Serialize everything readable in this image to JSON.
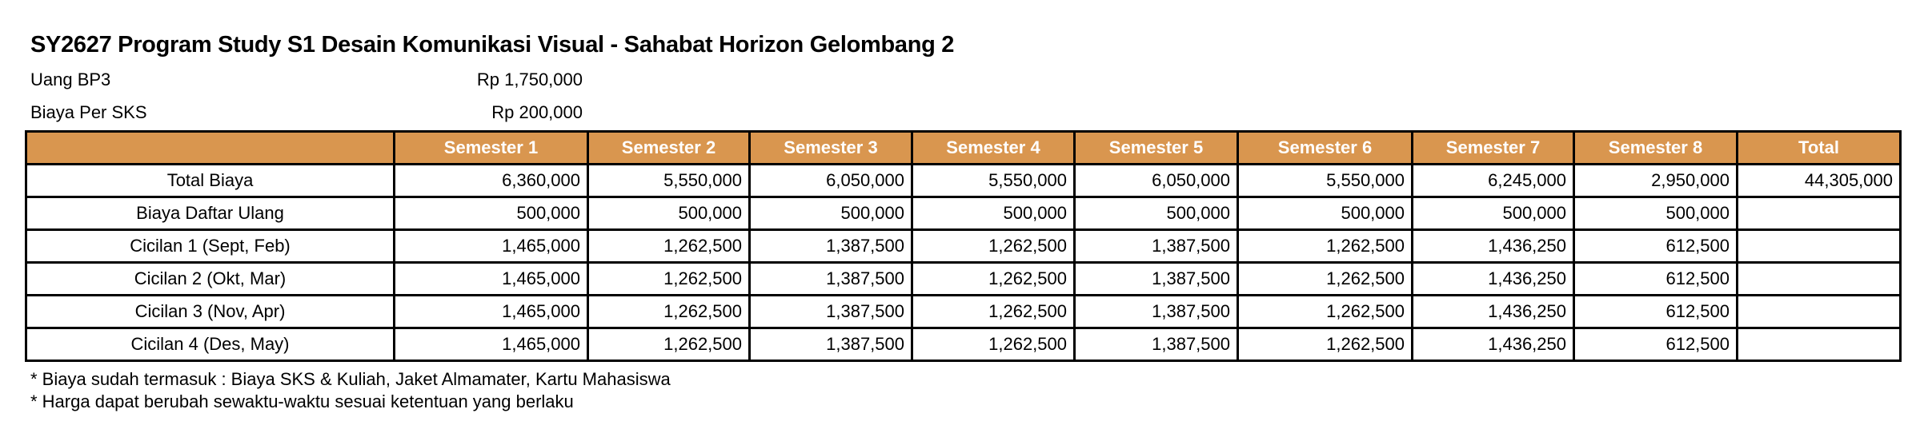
{
  "title": "SY2627 Program Study S1 Desain Komunikasi Visual - Sahabat Horizon Gelombang 2",
  "info": [
    {
      "label": "Uang BP3",
      "value": "Rp 1,750,000"
    },
    {
      "label": "Biaya Per SKS",
      "value": "Rp 200,000"
    }
  ],
  "header_color": "#D9964F",
  "table": {
    "columns": [
      "",
      "Semester 1",
      "Semester 2",
      "Semester 3",
      "Semester 4",
      "Semester 5",
      "Semester 6",
      "Semester 7",
      "Semester 8",
      "Total"
    ],
    "rows": [
      [
        "Total Biaya",
        "6,360,000",
        "5,550,000",
        "6,050,000",
        "5,550,000",
        "6,050,000",
        "5,550,000",
        "6,245,000",
        "2,950,000",
        "44,305,000"
      ],
      [
        "Biaya Daftar Ulang",
        "500,000",
        "500,000",
        "500,000",
        "500,000",
        "500,000",
        "500,000",
        "500,000",
        "500,000",
        ""
      ],
      [
        "Cicilan 1 (Sept, Feb)",
        "1,465,000",
        "1,262,500",
        "1,387,500",
        "1,262,500",
        "1,387,500",
        "1,262,500",
        "1,436,250",
        "612,500",
        ""
      ],
      [
        "Cicilan 2 (Okt, Mar)",
        "1,465,000",
        "1,262,500",
        "1,387,500",
        "1,262,500",
        "1,387,500",
        "1,262,500",
        "1,436,250",
        "612,500",
        ""
      ],
      [
        "Cicilan 3 (Nov, Apr)",
        "1,465,000",
        "1,262,500",
        "1,387,500",
        "1,262,500",
        "1,387,500",
        "1,262,500",
        "1,436,250",
        "612,500",
        ""
      ],
      [
        "Cicilan 4 (Des, May)",
        "1,465,000",
        "1,262,500",
        "1,387,500",
        "1,262,500",
        "1,387,500",
        "1,262,500",
        "1,436,250",
        "612,500",
        ""
      ]
    ]
  },
  "notes": [
    "* Biaya sudah termasuk : Biaya SKS & Kuliah, Jaket Almamater, Kartu Mahasiswa",
    "* Harga dapat berubah sewaktu-waktu sesuai ketentuan yang berlaku"
  ]
}
